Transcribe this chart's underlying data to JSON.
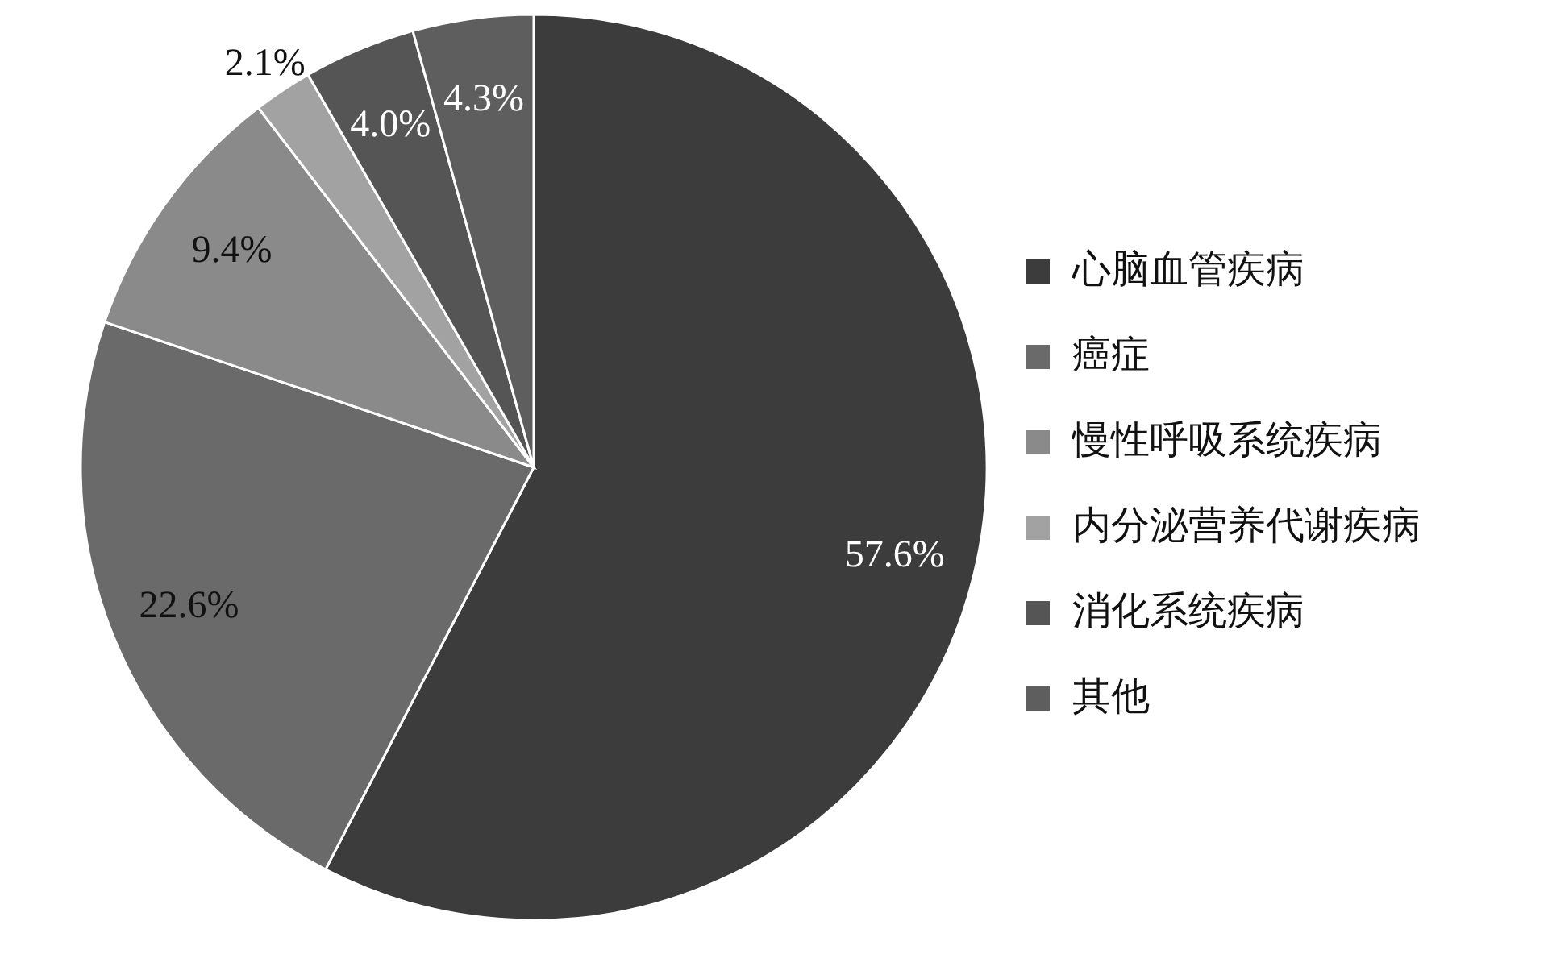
{
  "chart_data": {
    "type": "pie",
    "categories": [
      "心脑血管疾病",
      "癌症",
      "慢性呼吸系统疾病",
      "内分泌营养代谢疾病",
      "消化系统疾病",
      "其他"
    ],
    "values": [
      57.6,
      22.6,
      9.4,
      2.1,
      4.0,
      4.3
    ],
    "colors": [
      "#3c3c3c",
      "#6a6a6a",
      "#8a8a8a",
      "#a2a2a2",
      "#555555",
      "#5e5e5e"
    ],
    "value_labels": [
      "57.6%",
      "22.6%",
      "9.4%",
      "2.1%",
      "4.0%",
      "4.3%"
    ],
    "legend": "right"
  }
}
